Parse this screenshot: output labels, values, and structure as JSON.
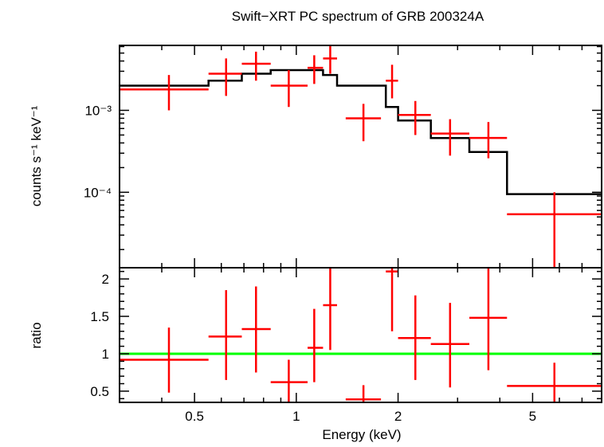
{
  "chart_data": [
    {
      "type": "scatter",
      "panel": "spectrum",
      "title": "Swift−XRT PC spectrum of GRB 200324A",
      "xlabel": "",
      "ylabel": "counts s⁻¹ keV⁻¹",
      "xscale": "log",
      "yscale": "log",
      "xlim": [
        0.3,
        8.0
      ],
      "ylim": [
        1.2e-05,
        0.0062
      ],
      "y_tick_labels": [
        "10⁻³",
        "10⁻⁴"
      ],
      "y_ticks": [
        0.001,
        0.0001
      ],
      "colors": {
        "data": "#ff0000",
        "model": "#000000"
      },
      "series": [
        {
          "role": "data",
          "points": [
            {
              "x": 0.42,
              "xlo": 0.3,
              "xhi": 0.55,
              "y": 0.0018,
              "ylo": 0.001,
              "yhi": 0.0027
            },
            {
              "x": 0.62,
              "xlo": 0.55,
              "xhi": 0.69,
              "y": 0.0028,
              "ylo": 0.0015,
              "yhi": 0.0043
            },
            {
              "x": 0.76,
              "xlo": 0.69,
              "xhi": 0.84,
              "y": 0.0037,
              "ylo": 0.0023,
              "yhi": 0.0052
            },
            {
              "x": 0.95,
              "xlo": 0.84,
              "xhi": 1.08,
              "y": 0.002,
              "ylo": 0.0011,
              "yhi": 0.0031
            },
            {
              "x": 1.13,
              "xlo": 1.08,
              "xhi": 1.2,
              "y": 0.0033,
              "ylo": 0.0021,
              "yhi": 0.0047
            },
            {
              "x": 1.26,
              "xlo": 1.2,
              "xhi": 1.32,
              "y": 0.0043,
              "ylo": 0.0028,
              "yhi": 0.0062
            },
            {
              "x": 1.58,
              "xlo": 1.4,
              "xhi": 1.78,
              "y": 0.0008,
              "ylo": 0.00042,
              "yhi": 0.0012
            },
            {
              "x": 1.92,
              "xlo": 1.84,
              "xhi": 2.0,
              "y": 0.0023,
              "ylo": 0.0014,
              "yhi": 0.0036
            },
            {
              "x": 2.25,
              "xlo": 2.0,
              "xhi": 2.5,
              "y": 0.00088,
              "ylo": 0.0005,
              "yhi": 0.0013
            },
            {
              "x": 2.85,
              "xlo": 2.5,
              "xhi": 3.25,
              "y": 0.00052,
              "ylo": 0.00028,
              "yhi": 0.00078
            },
            {
              "x": 3.7,
              "xlo": 3.25,
              "xhi": 4.2,
              "y": 0.00046,
              "ylo": 0.00026,
              "yhi": 0.00072
            },
            {
              "x": 5.8,
              "xlo": 4.2,
              "xhi": 8.0,
              "y": 5.4e-05,
              "ylo": 1.2e-05,
              "yhi": 0.0001
            }
          ]
        },
        {
          "role": "model",
          "steps": [
            {
              "xlo": 0.3,
              "xhi": 0.55,
              "y": 0.002
            },
            {
              "xlo": 0.55,
              "xhi": 0.69,
              "y": 0.0023
            },
            {
              "xlo": 0.69,
              "xhi": 0.84,
              "y": 0.0028
            },
            {
              "xlo": 0.84,
              "xhi": 1.2,
              "y": 0.0031
            },
            {
              "xlo": 1.2,
              "xhi": 1.32,
              "y": 0.0027
            },
            {
              "xlo": 1.32,
              "xhi": 1.84,
              "y": 0.002
            },
            {
              "xlo": 1.84,
              "xhi": 2.0,
              "y": 0.0011
            },
            {
              "xlo": 2.0,
              "xhi": 2.5,
              "y": 0.00075
            },
            {
              "xlo": 2.5,
              "xhi": 3.25,
              "y": 0.00046
            },
            {
              "xlo": 3.25,
              "xhi": 4.2,
              "y": 0.00031
            },
            {
              "xlo": 4.2,
              "xhi": 8.0,
              "y": 9.5e-05
            }
          ]
        }
      ]
    },
    {
      "type": "scatter",
      "panel": "ratio",
      "title": "",
      "xlabel": "Energy (keV)",
      "ylabel": "ratio",
      "xscale": "log",
      "yscale": "linear",
      "xlim": [
        0.3,
        8.0
      ],
      "ylim": [
        0.35,
        2.15
      ],
      "x_ticks": [
        0.5,
        1,
        2,
        5
      ],
      "x_tick_labels": [
        "0.5",
        "1",
        "2",
        "5"
      ],
      "y_ticks": [
        0.5,
        1,
        1.5,
        2
      ],
      "y_tick_labels": [
        "0.5",
        "1",
        "1.5",
        "2"
      ],
      "reference_line": {
        "y": 1,
        "color": "#00ff00"
      },
      "colors": {
        "data": "#ff0000"
      },
      "series": [
        {
          "role": "data",
          "points": [
            {
              "x": 0.42,
              "xlo": 0.3,
              "xhi": 0.55,
              "y": 0.92,
              "ylo": 0.48,
              "yhi": 1.35
            },
            {
              "x": 0.62,
              "xlo": 0.55,
              "xhi": 0.69,
              "y": 1.23,
              "ylo": 0.65,
              "yhi": 1.85
            },
            {
              "x": 0.76,
              "xlo": 0.69,
              "xhi": 0.84,
              "y": 1.33,
              "ylo": 0.75,
              "yhi": 1.9
            },
            {
              "x": 0.95,
              "xlo": 0.84,
              "xhi": 1.08,
              "y": 0.62,
              "ylo": 0.35,
              "yhi": 0.92
            },
            {
              "x": 1.13,
              "xlo": 1.08,
              "xhi": 1.2,
              "y": 1.08,
              "ylo": 0.62,
              "yhi": 1.6
            },
            {
              "x": 1.26,
              "xlo": 1.2,
              "xhi": 1.32,
              "y": 1.65,
              "ylo": 1.05,
              "yhi": 2.15
            },
            {
              "x": 1.58,
              "xlo": 1.4,
              "xhi": 1.78,
              "y": 0.39,
              "ylo": 0.35,
              "yhi": 0.58
            },
            {
              "x": 1.92,
              "xlo": 1.84,
              "xhi": 2.0,
              "y": 2.1,
              "ylo": 1.3,
              "yhi": 2.15
            },
            {
              "x": 2.25,
              "xlo": 2.0,
              "xhi": 2.5,
              "y": 1.21,
              "ylo": 0.65,
              "yhi": 1.78
            },
            {
              "x": 2.85,
              "xlo": 2.5,
              "xhi": 3.25,
              "y": 1.13,
              "ylo": 0.55,
              "yhi": 1.68
            },
            {
              "x": 3.7,
              "xlo": 3.25,
              "xhi": 4.2,
              "y": 1.48,
              "ylo": 0.78,
              "yhi": 2.15
            },
            {
              "x": 5.8,
              "xlo": 4.2,
              "xhi": 8.0,
              "y": 0.57,
              "ylo": 0.35,
              "yhi": 0.88
            }
          ]
        }
      ]
    }
  ]
}
